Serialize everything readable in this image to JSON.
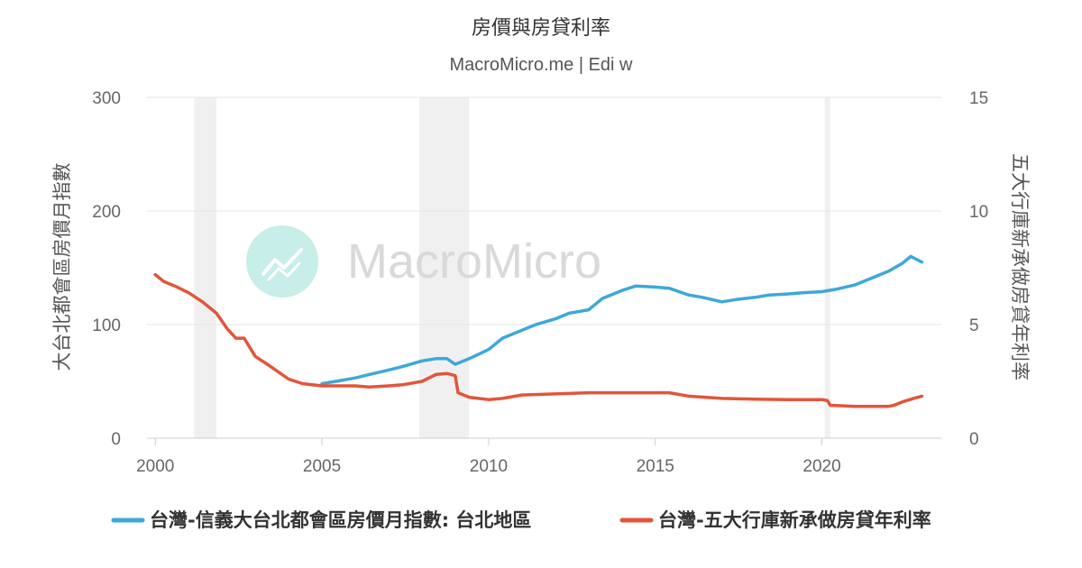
{
  "chart_data": {
    "type": "line",
    "title": "房價與房貸利率",
    "subtitle": "MacroMicro.me | Edi w",
    "watermark": "MacroMicro",
    "colors": {
      "series_house": "#3DA8D8",
      "series_rate": "#E2553A",
      "recession": "#f0f0f0",
      "grid": "#e6e6e6",
      "watermark_circle": "#c7eee8"
    },
    "x_axis": {
      "type": "date",
      "range": [
        "1999-10-01",
        "2023-08-01"
      ],
      "ticks": [
        "2000",
        "2005",
        "2010",
        "2015",
        "2020"
      ]
    },
    "y_axis_left": {
      "title": "大台北都會區房價月指數",
      "range": [
        0,
        300
      ],
      "ticks": [
        "0",
        "100",
        "200",
        "300"
      ]
    },
    "y_axis_right": {
      "title": "五大行庫新承做房貸年利率",
      "range": [
        0,
        15
      ],
      "ticks": [
        "0",
        "5",
        "10",
        "15"
      ]
    },
    "recession_bands": [
      [
        "2001-03-01",
        "2001-11-01"
      ],
      [
        "2007-12-01",
        "2009-06-01"
      ],
      [
        "2020-02-01",
        "2020-04-01"
      ]
    ],
    "grid": true,
    "legend_position": "bottom",
    "series": [
      {
        "name": "台灣-信義大台北都會區房價月指數: 台北地區",
        "axis": "left",
        "x": [
          "2005-01",
          "2005-06",
          "2006-01",
          "2006-06",
          "2007-01",
          "2007-06",
          "2008-01",
          "2008-06",
          "2008-10",
          "2009-01",
          "2009-06",
          "2010-01",
          "2010-06",
          "2011-01",
          "2011-06",
          "2012-01",
          "2012-06",
          "2013-01",
          "2013-06",
          "2014-01",
          "2014-06",
          "2015-01",
          "2015-06",
          "2016-01",
          "2016-06",
          "2017-01",
          "2017-06",
          "2018-01",
          "2018-06",
          "2019-01",
          "2019-06",
          "2020-01",
          "2020-06",
          "2021-01",
          "2021-06",
          "2022-01",
          "2022-06",
          "2022-09",
          "2023-01"
        ],
        "values": [
          48,
          50,
          53,
          56,
          60,
          63,
          68,
          70,
          70,
          65,
          70,
          78,
          88,
          95,
          100,
          105,
          110,
          113,
          123,
          130,
          134,
          133,
          132,
          126,
          124,
          120,
          122,
          124,
          126,
          127,
          128,
          129,
          131,
          135,
          140,
          147,
          154,
          160,
          155
        ]
      },
      {
        "name": "台灣-五大行庫新承做房貸年利率",
        "axis": "right",
        "x": [
          "2000-01",
          "2000-04",
          "2000-08",
          "2001-01",
          "2001-06",
          "2001-11",
          "2002-03",
          "2002-06",
          "2002-09",
          "2003-01",
          "2003-06",
          "2004-01",
          "2004-06",
          "2005-01",
          "2006-01",
          "2006-06",
          "2007-01",
          "2007-06",
          "2008-01",
          "2008-06",
          "2008-10",
          "2009-01",
          "2009-02",
          "2009-06",
          "2010-01",
          "2010-06",
          "2011-01",
          "2012-01",
          "2013-01",
          "2014-01",
          "2015-01",
          "2015-06",
          "2016-01",
          "2017-01",
          "2018-01",
          "2019-01",
          "2020-01",
          "2020-03",
          "2020-04",
          "2021-01",
          "2022-01",
          "2022-03",
          "2022-06",
          "2022-10",
          "2023-01"
        ],
        "values": [
          7.2,
          6.9,
          6.7,
          6.4,
          6.0,
          5.5,
          4.8,
          4.4,
          4.4,
          3.6,
          3.2,
          2.6,
          2.4,
          2.3,
          2.3,
          2.25,
          2.3,
          2.35,
          2.5,
          2.8,
          2.85,
          2.75,
          2.0,
          1.8,
          1.7,
          1.75,
          1.9,
          1.95,
          2.0,
          2.0,
          2.0,
          2.0,
          1.85,
          1.75,
          1.72,
          1.7,
          1.7,
          1.65,
          1.45,
          1.4,
          1.4,
          1.45,
          1.6,
          1.75,
          1.85
        ]
      }
    ]
  }
}
